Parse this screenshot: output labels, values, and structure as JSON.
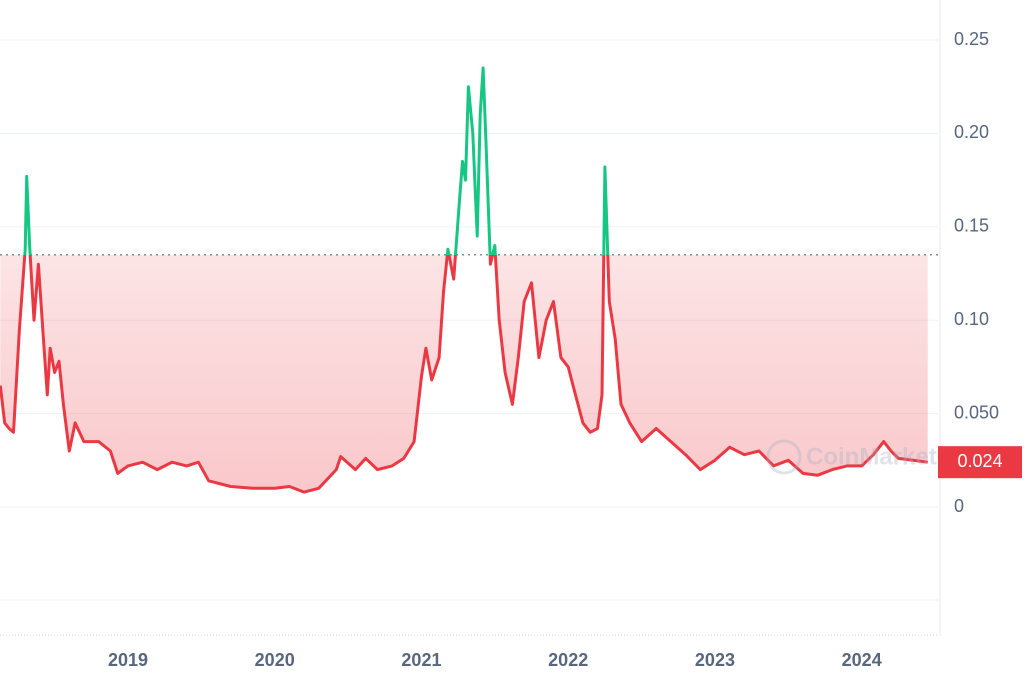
{
  "chart_data": {
    "type": "line",
    "x": [
      2018.13,
      2018.16,
      2018.19,
      2018.22,
      2018.26,
      2018.3,
      2018.31,
      2018.33,
      2018.36,
      2018.39,
      2018.42,
      2018.45,
      2018.47,
      2018.5,
      2018.53,
      2018.56,
      2018.6,
      2018.64,
      2018.7,
      2018.8,
      2018.88,
      2018.93,
      2019.0,
      2019.1,
      2019.2,
      2019.3,
      2019.4,
      2019.48,
      2019.55,
      2019.7,
      2019.85,
      2020.0,
      2020.1,
      2020.2,
      2020.3,
      2020.42,
      2020.45,
      2020.55,
      2020.62,
      2020.7,
      2020.8,
      2020.88,
      2020.95,
      2021.0,
      2021.03,
      2021.07,
      2021.12,
      2021.15,
      2021.18,
      2021.22,
      2021.26,
      2021.28,
      2021.3,
      2021.32,
      2021.35,
      2021.38,
      2021.4,
      2021.42,
      2021.44,
      2021.47,
      2021.5,
      2021.53,
      2021.57,
      2021.62,
      2021.66,
      2021.7,
      2021.75,
      2021.8,
      2021.85,
      2021.9,
      2021.95,
      2022.0,
      2022.05,
      2022.1,
      2022.15,
      2022.2,
      2022.23,
      2022.25,
      2022.28,
      2022.32,
      2022.36,
      2022.42,
      2022.5,
      2022.6,
      2022.7,
      2022.8,
      2022.9,
      2023.0,
      2023.1,
      2023.2,
      2023.3,
      2023.4,
      2023.5,
      2023.6,
      2023.7,
      2023.8,
      2023.9,
      2024.0,
      2024.08,
      2024.15,
      2024.2,
      2024.25,
      2024.35,
      2024.45
    ],
    "series": [
      {
        "color": "#ea3943",
        "color_above": "#16c784",
        "values": [
          0.065,
          0.045,
          0.042,
          0.04,
          0.095,
          0.138,
          0.177,
          0.14,
          0.1,
          0.13,
          0.095,
          0.06,
          0.085,
          0.072,
          0.078,
          0.055,
          0.03,
          0.045,
          0.035,
          0.035,
          0.03,
          0.018,
          0.022,
          0.024,
          0.02,
          0.024,
          0.022,
          0.024,
          0.014,
          0.011,
          0.01,
          0.01,
          0.011,
          0.008,
          0.01,
          0.02,
          0.027,
          0.02,
          0.026,
          0.02,
          0.022,
          0.026,
          0.035,
          0.07,
          0.085,
          0.068,
          0.08,
          0.115,
          0.138,
          0.122,
          0.165,
          0.185,
          0.175,
          0.225,
          0.2,
          0.145,
          0.21,
          0.235,
          0.195,
          0.13,
          0.14,
          0.1,
          0.072,
          0.055,
          0.08,
          0.11,
          0.12,
          0.08,
          0.1,
          0.11,
          0.08,
          0.075,
          0.06,
          0.045,
          0.04,
          0.042,
          0.06,
          0.182,
          0.11,
          0.09,
          0.055,
          0.045,
          0.035,
          0.042,
          0.035,
          0.028,
          0.02,
          0.025,
          0.032,
          0.028,
          0.03,
          0.022,
          0.025,
          0.018,
          0.017,
          0.02,
          0.022,
          0.022,
          0.028,
          0.035,
          0.03,
          0.026,
          0.025,
          0.024
        ]
      }
    ],
    "baseline": 0.135,
    "xlim": [
      2018.128,
      2024.52
    ],
    "xticks": [
      2019,
      2020,
      2021,
      2022,
      2023,
      2024
    ],
    "ylim": [
      0,
      0.25
    ],
    "yticks": [
      0,
      {
        "value": 0.05,
        "label": "0.050"
      },
      {
        "value": 0.1,
        "label": "0.10"
      },
      0.15,
      {
        "value": 0.2,
        "label": "0.20"
      },
      0.25
    ],
    "grid": true,
    "current_price_label": "0.024",
    "watermark": "CoinMarketCap"
  }
}
